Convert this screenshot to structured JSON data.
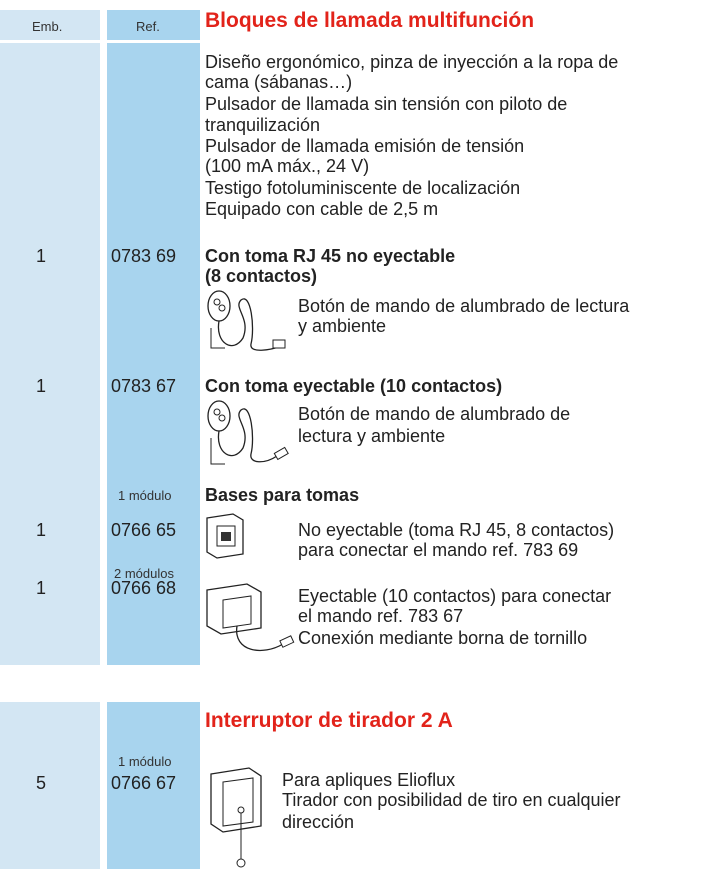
{
  "header": {
    "col_emb": "Emb.",
    "col_ref": "Ref."
  },
  "sections": [
    {
      "title": "Bloques de llamada multifunción",
      "description": [
        "Diseño ergonómico, pinza de inyección a la ropa de",
        "cama (sábanas…)",
        "Pulsador de llamada sin tensión con piloto de",
        "tranquilización",
        "Pulsador de llamada emisión de tensión",
        "(100 mA máx., 24 V)",
        "Testigo fotoluminiscente de localización",
        "Equipado con cable de 2,5 m"
      ],
      "items": [
        {
          "emb": "1",
          "ref": "0783 69",
          "heading": [
            "Con toma RJ 45 no eyectable",
            "(8 contactos)"
          ],
          "text": [
            "Botón de mando de alumbrado de lectura",
            "y ambiente"
          ]
        },
        {
          "emb": "1",
          "ref": "0783 67",
          "heading": [
            "Con toma eyectable (10 contactos)"
          ],
          "text": [
            "Botón de mando de alumbrado de",
            "lectura y ambiente"
          ]
        }
      ],
      "bases": {
        "module": "1 módulo",
        "heading": "Bases para tomas",
        "items": [
          {
            "emb": "1",
            "ref": "0766 65",
            "text": [
              "No eyectable (toma RJ 45, 8 contactos)",
              "para conectar el mando ref. 783 69"
            ]
          },
          {
            "module": "2 módulos",
            "emb": "1",
            "ref": "0766 68",
            "text": [
              "Eyectable (10 contactos) para conectar",
              "el mando ref. 783 67",
              "Conexión mediante borna de tornillo"
            ]
          }
        ]
      }
    },
    {
      "title": "Interruptor de tirador 2 A",
      "module": "1 módulo",
      "emb": "5",
      "ref": "0766 67",
      "text": [
        "Para apliques Elioflux",
        "Tirador con posibilidad de tiro en cualquier",
        "dirección"
      ]
    }
  ]
}
